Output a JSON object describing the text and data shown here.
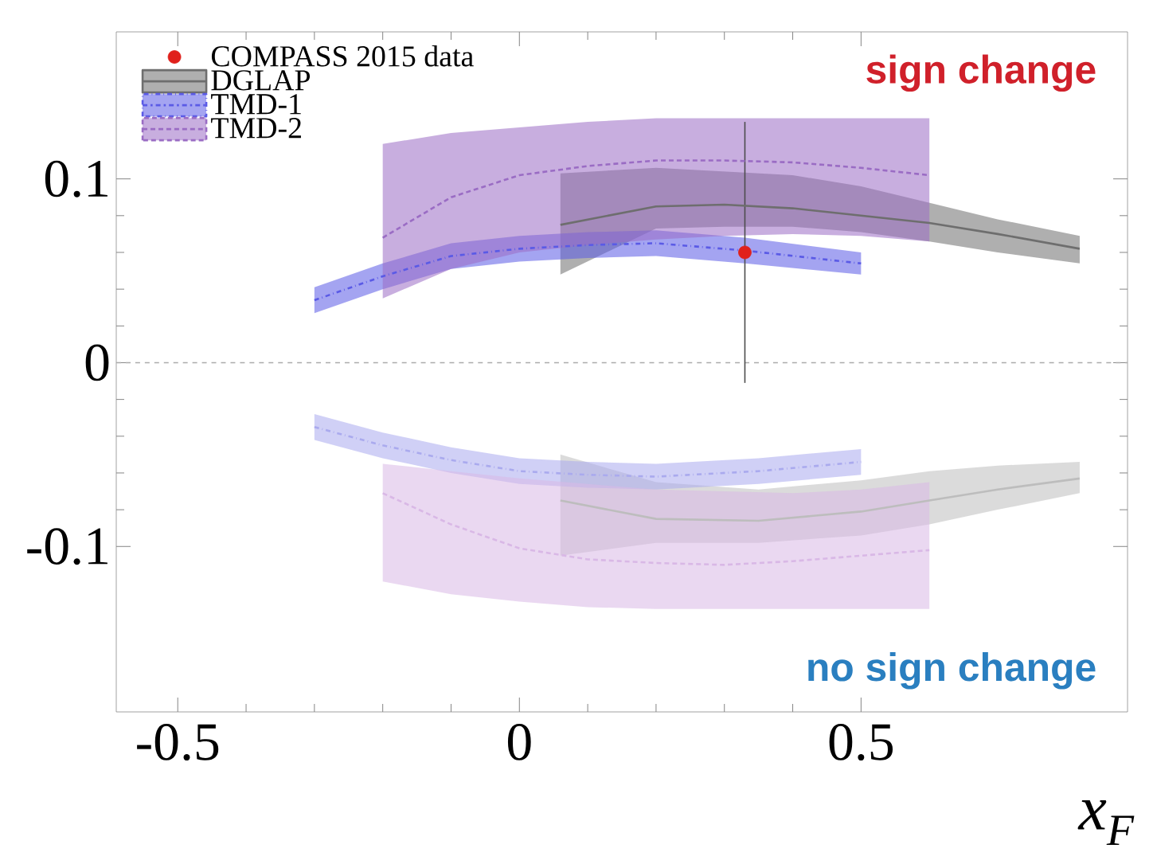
{
  "chart_data": {
    "type": "line",
    "xlabel": "x$_{F}$",
    "annotations": [
      "sign change",
      "no sign change"
    ],
    "xlim": [
      -0.59,
      0.89
    ],
    "ylim": [
      -0.19,
      0.18
    ],
    "xticks": [
      -0.5,
      0,
      0.5
    ],
    "yticks": [
      -0.1,
      0,
      0.1
    ],
    "grid": false,
    "legend": "top left",
    "ref_lines": [
      {
        "axis": "y",
        "value": 0,
        "color": "#aaaaaa",
        "line_style": "dashed"
      }
    ],
    "series": [
      {
        "name": "COMPASS 2015 data",
        "type": "scatter",
        "color": "#e0201b",
        "marker": "circle",
        "x": [
          0.33
        ],
        "values": [
          0.06
        ],
        "errors": [
          0.071
        ]
      },
      {
        "name": "DGLAP",
        "color": "#6e6e6e",
        "line_style": "solid",
        "x": [
          0.06,
          0.2,
          0.3,
          0.4,
          0.5,
          0.6,
          0.7,
          0.82
        ],
        "values": [
          0.075,
          0.085,
          0.086,
          0.084,
          0.08,
          0.076,
          0.07,
          0.062
        ],
        "lower": [
          0.048,
          0.073,
          0.074,
          0.074,
          0.071,
          0.066,
          0.06,
          0.054
        ],
        "upper": [
          0.103,
          0.106,
          0.104,
          0.102,
          0.096,
          0.087,
          0.078,
          0.069
        ]
      },
      {
        "name": "TMD-1",
        "color": "#5a5ae6",
        "line_style": "dashed",
        "x": [
          -0.3,
          -0.2,
          -0.1,
          0,
          0.1,
          0.2,
          0.33,
          0.5
        ],
        "values": [
          0.034,
          0.047,
          0.058,
          0.062,
          0.064,
          0.065,
          0.061,
          0.054
        ],
        "lower": [
          0.027,
          0.04,
          0.051,
          0.055,
          0.057,
          0.058,
          0.054,
          0.048
        ],
        "upper": [
          0.041,
          0.054,
          0.065,
          0.069,
          0.071,
          0.072,
          0.068,
          0.06
        ]
      },
      {
        "name": "TMD-2",
        "color": "#9a6cc4",
        "line_style": "dotted",
        "x": [
          -0.2,
          -0.1,
          0,
          0.1,
          0.2,
          0.3,
          0.4,
          0.5,
          0.6
        ],
        "values": [
          0.068,
          0.09,
          0.102,
          0.107,
          0.11,
          0.11,
          0.109,
          0.106,
          0.102
        ],
        "lower": [
          0.035,
          0.051,
          0.06,
          0.064,
          0.067,
          0.069,
          0.07,
          0.069,
          0.066
        ],
        "upper": [
          0.119,
          0.125,
          0.128,
          0.131,
          0.133,
          0.133,
          0.133,
          0.133,
          0.133
        ]
      },
      {
        "color": "#bdbdbd",
        "line_style": "solid",
        "x": [
          0.06,
          0.2,
          0.35,
          0.5,
          0.6,
          0.7,
          0.82
        ],
        "values": [
          -0.075,
          -0.085,
          -0.086,
          -0.081,
          -0.075,
          -0.069,
          -0.063
        ],
        "lower": [
          -0.105,
          -0.098,
          -0.098,
          -0.094,
          -0.088,
          -0.08,
          -0.071
        ],
        "upper": [
          -0.05,
          -0.065,
          -0.069,
          -0.064,
          -0.059,
          -0.056,
          -0.054
        ]
      },
      {
        "color": "#aaaaee",
        "line_style": "dashed",
        "x": [
          -0.3,
          -0.2,
          -0.1,
          0,
          0.1,
          0.2,
          0.35,
          0.5
        ],
        "values": [
          -0.035,
          -0.045,
          -0.053,
          -0.059,
          -0.061,
          -0.062,
          -0.059,
          -0.054
        ],
        "lower": [
          -0.042,
          -0.052,
          -0.06,
          -0.066,
          -0.068,
          -0.069,
          -0.066,
          -0.061
        ],
        "upper": [
          -0.028,
          -0.038,
          -0.046,
          -0.052,
          -0.054,
          -0.055,
          -0.052,
          -0.047
        ]
      },
      {
        "color": "#d9b8e6",
        "line_style": "dotted",
        "x": [
          -0.2,
          -0.1,
          0,
          0.1,
          0.2,
          0.3,
          0.4,
          0.5,
          0.6
        ],
        "values": [
          -0.071,
          -0.088,
          -0.101,
          -0.107,
          -0.109,
          -0.11,
          -0.108,
          -0.105,
          -0.102
        ],
        "lower": [
          -0.119,
          -0.126,
          -0.13,
          -0.133,
          -0.134,
          -0.134,
          -0.134,
          -0.134,
          -0.134
        ],
        "upper": [
          -0.055,
          -0.059,
          -0.063,
          -0.066,
          -0.069,
          -0.07,
          -0.071,
          -0.069,
          -0.065
        ]
      }
    ]
  }
}
